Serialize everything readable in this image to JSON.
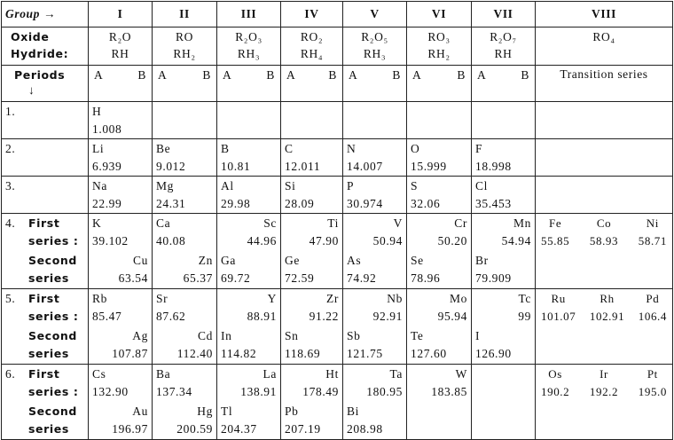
{
  "header": {
    "group_label": "Group →",
    "groups": [
      "I",
      "II",
      "III",
      "IV",
      "V",
      "VI",
      "VII",
      "VIII"
    ],
    "oxide_label": "Oxide",
    "hydride_label": "Hydride:",
    "oxides": [
      "R₂O",
      "RO",
      "R₂O₃",
      "RO₂",
      "R₂O₅",
      "RO₃",
      "R₂O₇",
      "RO₄"
    ],
    "hydrides": [
      "RH",
      "RH₂",
      "RH₃",
      "RH₄",
      "RH₃",
      "RH₂",
      "RH"
    ],
    "periods_label": "Periods",
    "periods_arrow": "↓",
    "sides": [
      "A",
      "B"
    ],
    "transition_label": "Transition series"
  },
  "periods": [
    {
      "number": "1.",
      "lines": [
        {
          "cells": [
            {
              "symbol": "H",
              "weight": "1.008",
              "side": "A"
            },
            null,
            null,
            null,
            null,
            null,
            null
          ]
        }
      ]
    },
    {
      "number": "2.",
      "lines": [
        {
          "cells": [
            {
              "symbol": "Li",
              "weight": "6.939",
              "side": "A"
            },
            {
              "symbol": "Be",
              "weight": "9.012",
              "side": "A"
            },
            {
              "symbol": "B",
              "weight": "10.81",
              "side": "A"
            },
            {
              "symbol": "C",
              "weight": "12.011",
              "side": "A"
            },
            {
              "symbol": "N",
              "weight": "14.007",
              "side": "A"
            },
            {
              "symbol": "O",
              "weight": "15.999",
              "side": "A"
            },
            {
              "symbol": "F",
              "weight": "18.998",
              "side": "A"
            }
          ]
        }
      ]
    },
    {
      "number": "3.",
      "lines": [
        {
          "cells": [
            {
              "symbol": "Na",
              "weight": "22.99",
              "side": "A"
            },
            {
              "symbol": "Mg",
              "weight": "24.31",
              "side": "A"
            },
            {
              "symbol": "Al",
              "weight": "29.98",
              "side": "A"
            },
            {
              "symbol": "Si",
              "weight": "28.09",
              "side": "A"
            },
            {
              "symbol": "P",
              "weight": "30.974",
              "side": "A"
            },
            {
              "symbol": "S",
              "weight": "32.06",
              "side": "A"
            },
            {
              "symbol": "Cl",
              "weight": "35.453",
              "side": "A"
            }
          ]
        }
      ]
    },
    {
      "number": "4.",
      "lines": [
        {
          "name": "First series :",
          "cells": [
            {
              "symbol": "K",
              "weight": "39.102",
              "side": "A"
            },
            {
              "symbol": "Ca",
              "weight": "40.08",
              "side": "A"
            },
            {
              "symbol": "Sc",
              "weight": "44.96",
              "side": "B"
            },
            {
              "symbol": "Ti",
              "weight": "47.90",
              "side": "B"
            },
            {
              "symbol": "V",
              "weight": "50.94",
              "side": "B"
            },
            {
              "symbol": "Cr",
              "weight": "50.20",
              "side": "B"
            },
            {
              "symbol": "Mn",
              "weight": "54.94",
              "side": "B"
            }
          ]
        },
        {
          "name": "Second series",
          "cells": [
            {
              "symbol": "Cu",
              "weight": "63.54",
              "side": "B"
            },
            {
              "symbol": "Zn",
              "weight": "65.37",
              "side": "B"
            },
            {
              "symbol": "Ga",
              "weight": "69.72",
              "side": "A"
            },
            {
              "symbol": "Ge",
              "weight": "72.59",
              "side": "A"
            },
            {
              "symbol": "As",
              "weight": "74.92",
              "side": "A"
            },
            {
              "symbol": "Se",
              "weight": "78.96",
              "side": "A"
            },
            {
              "symbol": "Br",
              "weight": "79.909",
              "side": "A"
            }
          ]
        }
      ],
      "transition": [
        {
          "symbol": "Fe",
          "weight": "55.85"
        },
        {
          "symbol": "Co",
          "weight": "58.93"
        },
        {
          "symbol": "Ni",
          "weight": "58.71"
        }
      ]
    },
    {
      "number": "5.",
      "lines": [
        {
          "name": "First series :",
          "cells": [
            {
              "symbol": "Rb",
              "weight": "85.47",
              "side": "A"
            },
            {
              "symbol": "Sr",
              "weight": "87.62",
              "side": "A"
            },
            {
              "symbol": "Y",
              "weight": "88.91",
              "side": "B"
            },
            {
              "symbol": "Zr",
              "weight": "91.22",
              "side": "B"
            },
            {
              "symbol": "Nb",
              "weight": "92.91",
              "side": "B"
            },
            {
              "symbol": "Mo",
              "weight": "95.94",
              "side": "B"
            },
            {
              "symbol": "Tc",
              "weight": "99",
              "side": "B"
            }
          ]
        },
        {
          "name": "Second series",
          "cells": [
            {
              "symbol": "Ag",
              "weight": "107.87",
              "side": "B"
            },
            {
              "symbol": "Cd",
              "weight": "112.40",
              "side": "B"
            },
            {
              "symbol": "In",
              "weight": "114.82",
              "side": "A"
            },
            {
              "symbol": "Sn",
              "weight": "118.69",
              "side": "A"
            },
            {
              "symbol": "Sb",
              "weight": "121.75",
              "side": "A"
            },
            {
              "symbol": "Te",
              "weight": "127.60",
              "side": "A"
            },
            {
              "symbol": "I",
              "weight": "126.90",
              "side": "A"
            }
          ]
        }
      ],
      "transition": [
        {
          "symbol": "Ru",
          "weight": "101.07"
        },
        {
          "symbol": "Rh",
          "weight": "102.91"
        },
        {
          "symbol": "Pd",
          "weight": "106.4"
        }
      ]
    },
    {
      "number": "6.",
      "lines": [
        {
          "name": "First series :",
          "cells": [
            {
              "symbol": "Cs",
              "weight": "132.90",
              "side": "A"
            },
            {
              "symbol": "Ba",
              "weight": "137.34",
              "side": "A"
            },
            {
              "symbol": "La",
              "weight": "138.91",
              "side": "B"
            },
            {
              "symbol": "Ht",
              "weight": "178.49",
              "side": "B"
            },
            {
              "symbol": "Ta",
              "weight": "180.95",
              "side": "B"
            },
            {
              "symbol": "W",
              "weight": "183.85",
              "side": "B"
            },
            null
          ]
        },
        {
          "name": "Second series",
          "cells": [
            {
              "symbol": "Au",
              "weight": "196.97",
              "side": "B"
            },
            {
              "symbol": "Hg",
              "weight": "200.59",
              "side": "B"
            },
            {
              "symbol": "Tl",
              "weight": "204.37",
              "side": "A"
            },
            {
              "symbol": "Pb",
              "weight": "207.19",
              "side": "A"
            },
            {
              "symbol": "Bi",
              "weight": "208.98",
              "side": "A"
            },
            null,
            null
          ]
        }
      ],
      "transition": [
        {
          "symbol": "Os",
          "weight": "190.2"
        },
        {
          "symbol": "Ir",
          "weight": "192.2"
        },
        {
          "symbol": "Pt",
          "weight": "195.0"
        }
      ]
    }
  ]
}
